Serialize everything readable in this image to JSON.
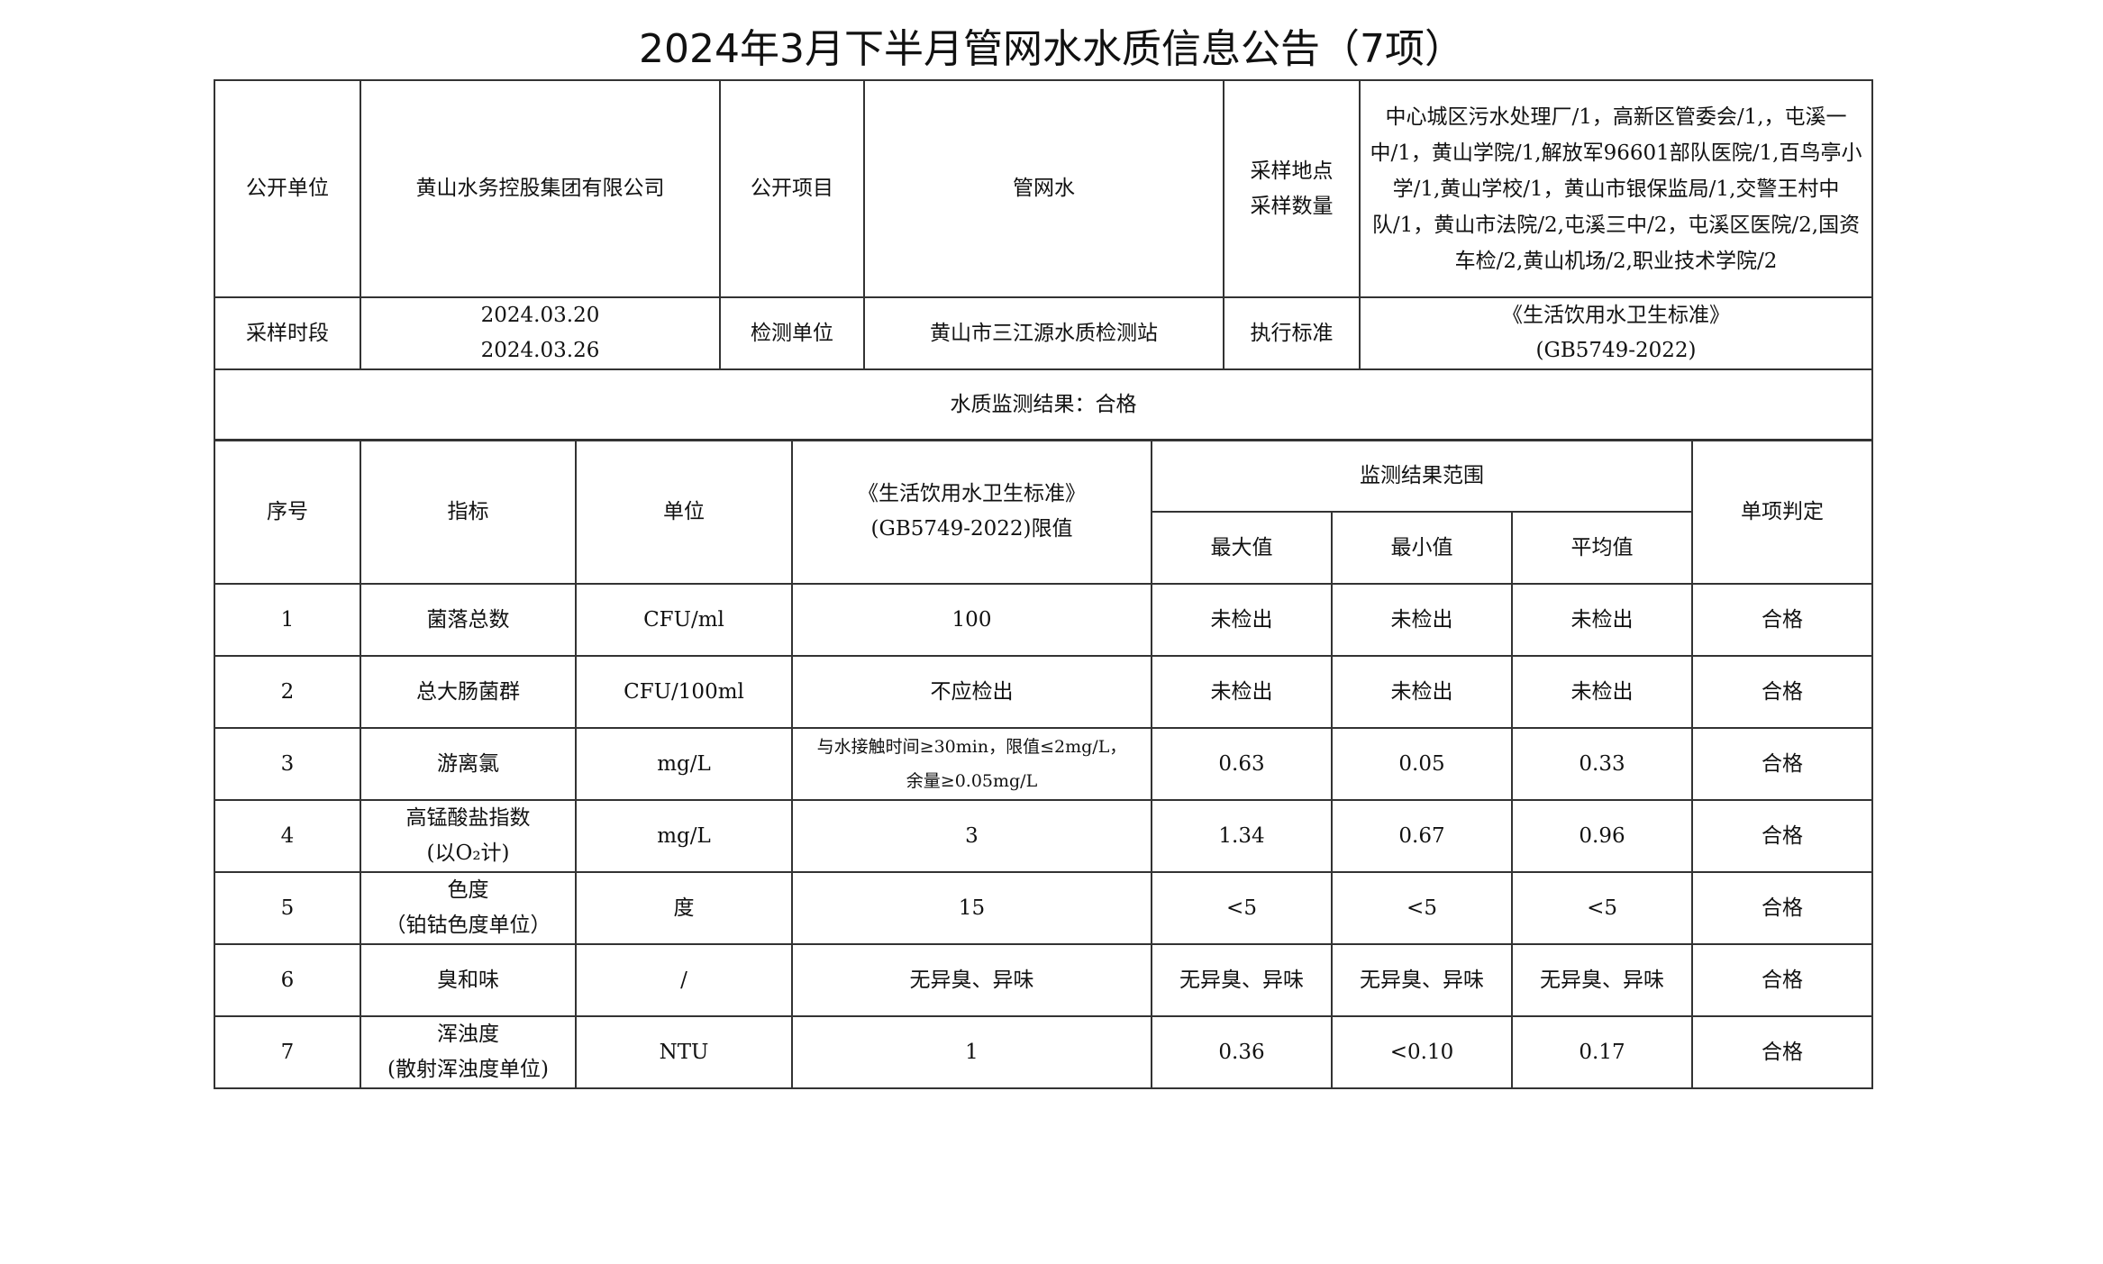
{
  "title": "2024年3月下半月管网水水质信息公告（7项）",
  "info": {
    "unit_label": "公开单位",
    "unit_value": "黄山水务控股集团有限公司",
    "item_label": "公开项目",
    "item_value": "管网水",
    "site_label_1": "采样地点",
    "site_label_2": "采样数量",
    "sites_value": "中心城区污水处理厂/1，高新区管委会/1,，屯溪一中/1，黄山学院/1,解放军96601部队医院/1,百鸟亭小学/1,黄山学校/1，黄山市银保监局/1,交警王村中队/1，黄山市法院/2,屯溪三中/2，屯溪区医院/2,国资车检/2,黄山机场/2,职业技术学院/2",
    "period_label": "采样时段",
    "period_start": "2024.03.20",
    "period_end": "2024.03.26",
    "lab_label": "检测单位",
    "lab_value": "黄山市三江源水质检测站",
    "standard_label": "执行标准",
    "standard_line1": "《生活饮用水卫生标准》",
    "standard_line2": "(GB5749-2022)",
    "result_summary": "水质监测结果：合格"
  },
  "table": {
    "headers": {
      "no": "序号",
      "indicator": "指标",
      "unit": "单位",
      "limit_line1": "《生活饮用水卫生标准》",
      "limit_line2": "(GB5749-2022)限值",
      "range": "监测结果范围",
      "max": "最大值",
      "min": "最小值",
      "avg": "平均值",
      "judge": "单项判定"
    },
    "rows": [
      {
        "no": "1",
        "indicator": "菌落总数",
        "indicator2": "",
        "unit": "CFU/ml",
        "limit": "100",
        "limit2": "",
        "max": "未检出",
        "min": "未检出",
        "avg": "未检出",
        "judge": "合格"
      },
      {
        "no": "2",
        "indicator": "总大肠菌群",
        "indicator2": "",
        "unit": "CFU/100ml",
        "limit": "不应检出",
        "limit2": "",
        "max": "未检出",
        "min": "未检出",
        "avg": "未检出",
        "judge": "合格"
      },
      {
        "no": "3",
        "indicator": "游离氯",
        "indicator2": "",
        "unit": "mg/L",
        "limit": "与水接触时间≥30min，限值≤2mg/L，",
        "limit2": "余量≥0.05mg/L",
        "max": "0.63",
        "min": "0.05",
        "avg": "0.33",
        "judge": "合格"
      },
      {
        "no": "4",
        "indicator": "高锰酸盐指数",
        "indicator2": "(以O₂计)",
        "unit": "mg/L",
        "limit": "3",
        "limit2": "",
        "max": "1.34",
        "min": "0.67",
        "avg": "0.96",
        "judge": "合格"
      },
      {
        "no": "5",
        "indicator": "色度",
        "indicator2": "（铂钴色度单位）",
        "unit": "度",
        "limit": "15",
        "limit2": "",
        "max": "<5",
        "min": "<5",
        "avg": "<5",
        "judge": "合格"
      },
      {
        "no": "6",
        "indicator": "臭和味",
        "indicator2": "",
        "unit": "/",
        "limit": "无异臭、异味",
        "limit2": "",
        "max": "无异臭、异味",
        "min": "无异臭、异味",
        "avg": "无异臭、异味",
        "judge": "合格"
      },
      {
        "no": "7",
        "indicator": "浑浊度",
        "indicator2": "(散射浑浊度单位)",
        "unit": "NTU",
        "limit": "1",
        "limit2": "",
        "max": "0.36",
        "min": "<0.10",
        "avg": "0.17",
        "judge": "合格"
      }
    ]
  }
}
